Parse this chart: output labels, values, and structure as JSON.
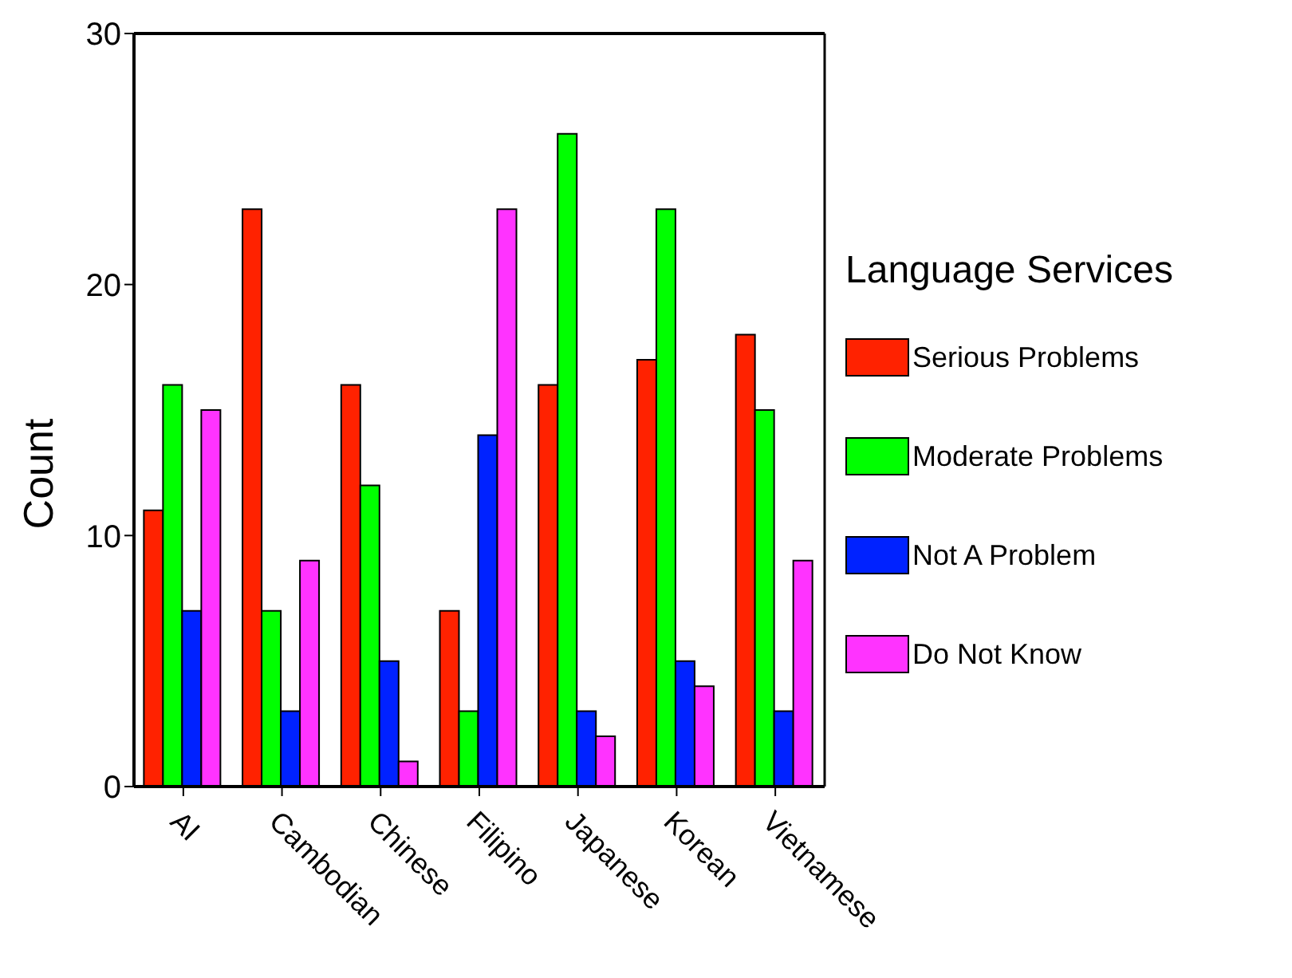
{
  "chart_data": {
    "type": "bar",
    "ylabel": "Count",
    "legend_title": "Language Services",
    "legend": "right",
    "categories": [
      "AI",
      "Cambodian",
      "Chinese",
      "Filipino",
      "Japanese",
      "Korean",
      "Vietnamese"
    ],
    "series": [
      {
        "name": "Serious Problems",
        "color": "#ff2200",
        "values": [
          11,
          23,
          16,
          7,
          16,
          17,
          18
        ]
      },
      {
        "name": "Moderate Problems",
        "color": "#00ff00",
        "values": [
          16,
          7,
          12,
          3,
          26,
          23,
          15
        ]
      },
      {
        "name": "Not A Problem",
        "color": "#0022ff",
        "values": [
          7,
          3,
          5,
          14,
          3,
          5,
          3
        ]
      },
      {
        "name": "Do Not Know",
        "color": "#ff33ff",
        "values": [
          15,
          9,
          1,
          23,
          2,
          4,
          9
        ]
      }
    ],
    "ylim": [
      0,
      30
    ],
    "yticks": [
      0,
      10,
      20,
      30
    ],
    "grid": false
  }
}
